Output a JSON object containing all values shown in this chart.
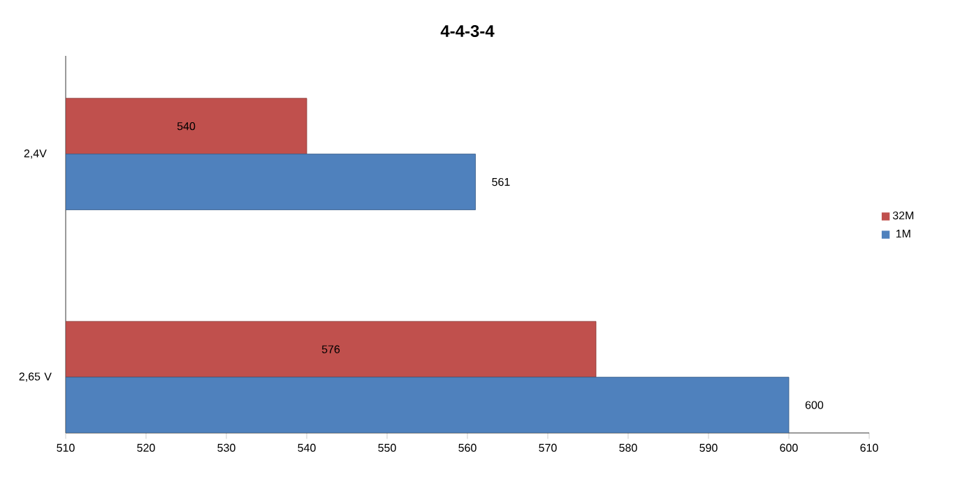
{
  "chart_data": {
    "type": "bar",
    "orientation": "horizontal",
    "title": "4-4-3-4",
    "categories": [
      "2,4V",
      "2,65 V"
    ],
    "series": [
      {
        "name": "32M",
        "color": "#c0504d",
        "values": [
          540,
          576
        ]
      },
      {
        "name": "1M",
        "color": "#4f81bd",
        "values": [
          561,
          600
        ]
      }
    ],
    "xlim": [
      510,
      610
    ],
    "xticks": [
      510,
      520,
      530,
      540,
      550,
      560,
      570,
      580,
      590,
      600,
      610
    ],
    "data_labels": true,
    "legend": "right",
    "grid": false
  }
}
